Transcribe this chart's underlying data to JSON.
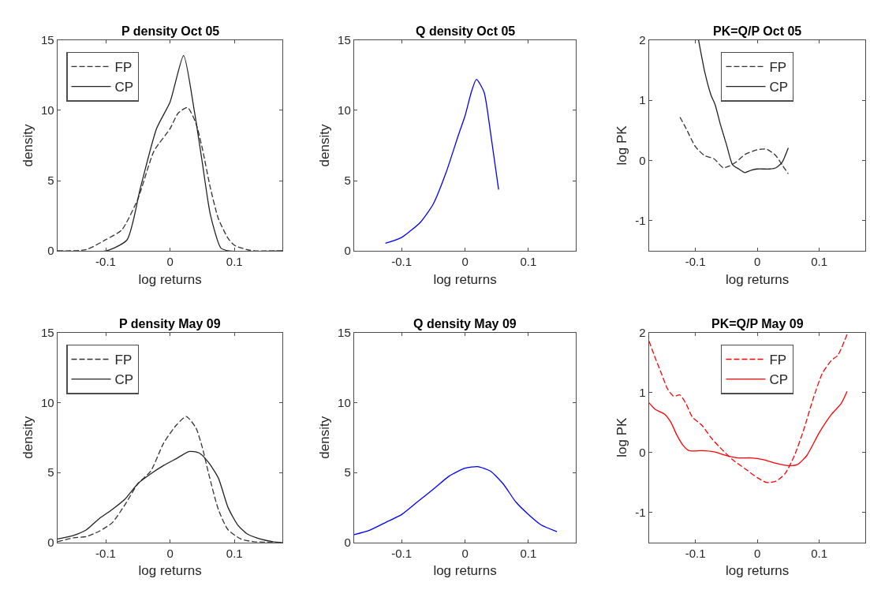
{
  "chart_data": [
    {
      "type": "line",
      "title": "P density Oct 05",
      "xlabel": "log returns",
      "ylabel": "density",
      "xlim": [
        -0.175,
        0.175
      ],
      "ylim": [
        0,
        15
      ],
      "xticks": [
        -0.1,
        0,
        0.1
      ],
      "yticks": [
        0,
        5,
        10,
        15
      ],
      "legend": "top left",
      "series": [
        {
          "name": "FP",
          "color": "#333333",
          "line_style": "dashed",
          "x": [
            -0.175,
            -0.13,
            -0.1,
            -0.075,
            -0.05,
            -0.025,
            0,
            0.0125,
            0.027,
            0.04,
            0.05,
            0.0625,
            0.075,
            0.09,
            0.1,
            0.125,
            0.175
          ],
          "values": [
            0,
            0.1,
            0.8,
            1.5,
            3.7,
            7.1,
            8.7,
            9.8,
            10.2,
            9.1,
            7.3,
            4.5,
            2.3,
            0.9,
            0.4,
            0.04,
            0
          ]
        },
        {
          "name": "CP",
          "color": "#222222",
          "line_style": "solid",
          "x": [
            -0.175,
            -0.1,
            -0.067,
            -0.046,
            -0.021,
            0,
            0.021,
            0.0375,
            0.05,
            0.0625,
            0.079,
            0.092,
            0.175
          ],
          "values": [
            0,
            0,
            0.78,
            4.5,
            8.7,
            10.6,
            13.9,
            10,
            6.3,
            2.6,
            0.2,
            0,
            0
          ]
        }
      ]
    },
    {
      "type": "line",
      "title": "Q density Oct 05",
      "xlabel": "log returns",
      "ylabel": "density",
      "xlim": [
        -0.175,
        0.175
      ],
      "ylim": [
        0,
        15
      ],
      "xticks": [
        -0.1,
        0,
        0.1
      ],
      "yticks": [
        0,
        5,
        10,
        15
      ],
      "series": [
        {
          "color": "#0000ff",
          "line_style": "solid",
          "x": [
            -0.1255,
            -0.1,
            -0.07,
            -0.05,
            -0.03,
            -0.01,
            0,
            0.01,
            0.018,
            0.03,
            0.04,
            0.053
          ],
          "values": [
            0.55,
            0.96,
            2.06,
            3.35,
            5.56,
            8.3,
            9.6,
            11.3,
            12.2,
            11.3,
            8.5,
            4.36
          ]
        }
      ]
    },
    {
      "type": "line",
      "title": "PK=Q/P Oct 05",
      "xlabel": "log returns",
      "ylabel": "log PK",
      "xlim": [
        -0.175,
        0.175
      ],
      "ylim": [
        -1.5,
        2
      ],
      "xticks": [
        -0.1,
        0,
        0.1
      ],
      "yticks": [
        -1,
        0,
        1,
        2
      ],
      "legend": "top",
      "series": [
        {
          "name": "FP",
          "color": "#333333",
          "line_style": "dashed",
          "x": [
            -0.125,
            -0.115,
            -0.1,
            -0.085,
            -0.07,
            -0.055,
            -0.045,
            -0.035,
            -0.02,
            0,
            0.015,
            0.03,
            0.04,
            0.05
          ],
          "values": [
            0.72,
            0.53,
            0.23,
            0.08,
            0.03,
            -0.12,
            -0.09,
            -0.03,
            0.1,
            0.18,
            0.19,
            0.08,
            -0.07,
            -0.22
          ]
        },
        {
          "name": "CP",
          "color": "#222222",
          "line_style": "solid",
          "x": [
            -0.095,
            -0.085,
            -0.075,
            -0.068,
            -0.06,
            -0.05,
            -0.04,
            -0.03,
            -0.02,
            -0.01,
            0,
            0.02,
            0.03,
            0.04,
            0.05
          ],
          "values": [
            2,
            1.47,
            1.09,
            0.92,
            0.61,
            0.27,
            -0.07,
            -0.14,
            -0.2,
            -0.16,
            -0.14,
            -0.14,
            -0.12,
            -0.03,
            0.21
          ]
        }
      ]
    },
    {
      "type": "line",
      "title": "P density May 09",
      "xlabel": "log returns",
      "ylabel": "density",
      "xlim": [
        -0.175,
        0.175
      ],
      "ylim": [
        0,
        15
      ],
      "xticks": [
        -0.1,
        0,
        0.1
      ],
      "yticks": [
        0,
        5,
        10,
        15
      ],
      "legend": "top left",
      "series": [
        {
          "name": "FP",
          "color": "#333333",
          "line_style": "dashed",
          "x": [
            -0.175,
            -0.15,
            -0.13,
            -0.11,
            -0.09,
            -0.07,
            -0.05,
            -0.03,
            -0.01,
            0.01,
            0.025,
            0.04,
            0.05,
            0.06,
            0.075,
            0.09,
            0.11,
            0.13,
            0.175
          ],
          "values": [
            0.05,
            0.33,
            0.42,
            0.8,
            1.4,
            2.7,
            4.2,
            5.1,
            7.1,
            8.4,
            9,
            8.2,
            6.8,
            4.9,
            2.35,
            0.9,
            0.24,
            0.05,
            0
          ]
        },
        {
          "name": "CP",
          "color": "#222222",
          "line_style": "solid",
          "x": [
            -0.175,
            -0.15,
            -0.13,
            -0.11,
            -0.09,
            -0.07,
            -0.05,
            -0.03,
            -0.01,
            0.01,
            0.03,
            0.045,
            0.06,
            0.075,
            0.09,
            0.105,
            0.12,
            0.14,
            0.16,
            0.175
          ],
          "values": [
            0.24,
            0.5,
            0.9,
            1.7,
            2.35,
            3.1,
            4.2,
            4.9,
            5.5,
            6,
            6.5,
            6.4,
            5.7,
            4.6,
            2.5,
            1.25,
            0.6,
            0.24,
            0.05,
            0
          ]
        }
      ]
    },
    {
      "type": "line",
      "title": "Q density May 09",
      "xlabel": "log returns",
      "ylabel": "density",
      "xlim": [
        -0.175,
        0.175
      ],
      "ylim": [
        0,
        15
      ],
      "xticks": [
        -0.1,
        0,
        0.1
      ],
      "yticks": [
        0,
        5,
        10,
        15
      ],
      "series": [
        {
          "color": "#0000ff",
          "line_style": "solid",
          "x": [
            -0.175,
            -0.15,
            -0.125,
            -0.1,
            -0.075,
            -0.05,
            -0.025,
            0,
            0.02,
            0.04,
            0.06,
            0.08,
            0.1,
            0.12,
            0.145
          ],
          "values": [
            0.55,
            0.88,
            1.43,
            1.99,
            2.9,
            3.8,
            4.74,
            5.3,
            5.42,
            5.1,
            4.2,
            2.9,
            2,
            1.25,
            0.77
          ]
        }
      ]
    },
    {
      "type": "line",
      "title": "PK=Q/P May 09",
      "xlabel": "log returns",
      "ylabel": "log PK",
      "xlim": [
        -0.175,
        0.175
      ],
      "ylim": [
        -1.5,
        2
      ],
      "xticks": [
        -0.1,
        0,
        0.1
      ],
      "yticks": [
        -1,
        0,
        1,
        2
      ],
      "legend": "top",
      "series": [
        {
          "name": "FP",
          "color": "#ff0000",
          "line_style": "dashed",
          "x": [
            -0.175,
            -0.165,
            -0.155,
            -0.145,
            -0.135,
            -0.125,
            -0.115,
            -0.105,
            -0.09,
            -0.075,
            -0.06,
            -0.04,
            -0.02,
            0,
            0.015,
            0.03,
            0.045,
            0.06,
            0.075,
            0.09,
            0.105,
            0.12,
            0.13,
            0.145
          ],
          "values": [
            1.86,
            1.58,
            1.32,
            1.06,
            0.94,
            0.96,
            0.81,
            0.59,
            0.46,
            0.25,
            0.08,
            -0.12,
            -0.27,
            -0.42,
            -0.5,
            -0.48,
            -0.35,
            -0.05,
            0.38,
            0.89,
            1.32,
            1.54,
            1.62,
            1.97
          ]
        },
        {
          "name": "CP",
          "color": "#ff0000",
          "line_style": "solid",
          "x": [
            -0.175,
            -0.165,
            -0.15,
            -0.14,
            -0.13,
            -0.12,
            -0.11,
            -0.09,
            -0.07,
            -0.05,
            -0.03,
            -0.01,
            0.01,
            0.03,
            0.05,
            0.065,
            0.08,
            0.1,
            0.12,
            0.135,
            0.145
          ],
          "values": [
            0.83,
            0.72,
            0.64,
            0.51,
            0.29,
            0.12,
            0.03,
            0.03,
            0.01,
            -0.05,
            -0.09,
            -0.09,
            -0.12,
            -0.18,
            -0.22,
            -0.2,
            -0.05,
            0.33,
            0.64,
            0.81,
            1.02
          ]
        }
      ]
    }
  ]
}
